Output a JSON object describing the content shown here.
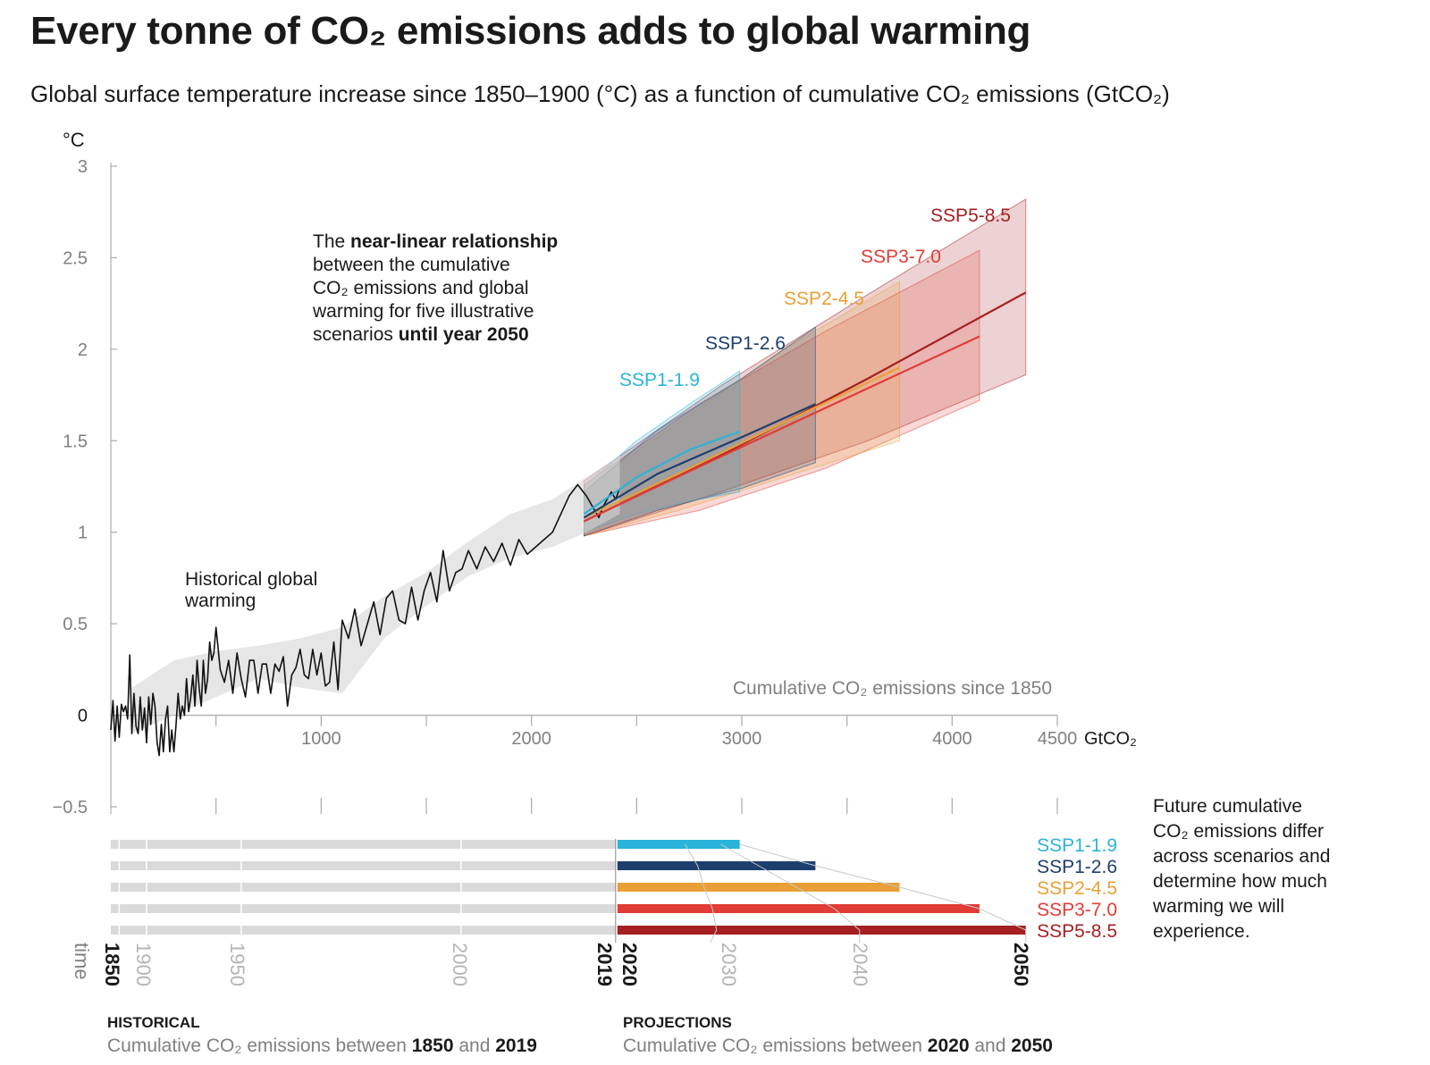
{
  "title": "Every tonne of CO₂ emissions adds to global warming",
  "subtitle": "Global surface temperature increase since 1850–1900 (°C) as a function of cumulative CO₂ emissions (GtCO₂)",
  "chart_data": {
    "type": "line",
    "ylabel": "°C",
    "xlabel": "Cumulative CO₂ emissions since 1850",
    "x_unit": "GtCO₂",
    "xlim": [
      0,
      4500
    ],
    "ylim": [
      -0.5,
      3
    ],
    "x_ticks": [
      "1000",
      "2000",
      "3000",
      "4000",
      "4500"
    ],
    "y_ticks": [
      "3",
      "2.5",
      "2",
      "1.5",
      "1",
      "0.5",
      "0",
      "−0.5"
    ],
    "annotation_linear": {
      "line1_pre": "The ",
      "line1_bold": "near-linear relationship",
      "line2": "between the cumulative",
      "line3": "CO₂ emissions and global",
      "line4": "warming for five illustrative",
      "line5_pre": "scenarios ",
      "line5_bold": "until year 2050"
    },
    "annotation_historical": [
      "Historical global",
      "warming"
    ],
    "historical": {
      "name": "Historical global warming",
      "x": [
        0,
        10,
        20,
        30,
        40,
        50,
        60,
        70,
        80,
        90,
        100,
        110,
        120,
        130,
        140,
        150,
        160,
        170,
        180,
        190,
        200,
        210,
        220,
        230,
        240,
        250,
        260,
        270,
        280,
        290,
        300,
        310,
        320,
        330,
        340,
        350,
        360,
        370,
        380,
        390,
        400,
        410,
        420,
        430,
        440,
        450,
        460,
        470,
        480,
        490,
        500,
        520,
        540,
        560,
        580,
        600,
        620,
        640,
        660,
        680,
        700,
        720,
        740,
        760,
        780,
        800,
        820,
        840,
        860,
        880,
        900,
        920,
        940,
        960,
        980,
        1000,
        1020,
        1040,
        1060,
        1080,
        1100,
        1130,
        1160,
        1190,
        1220,
        1250,
        1280,
        1310,
        1340,
        1370,
        1400,
        1430,
        1460,
        1490,
        1520,
        1550,
        1580,
        1610,
        1640,
        1670,
        1700,
        1740,
        1780,
        1820,
        1860,
        1900,
        1940,
        1980,
        2020,
        2060,
        2100,
        2140,
        2180,
        2220,
        2260,
        2280,
        2300,
        2320,
        2340,
        2360,
        2380,
        2400,
        2420
      ],
      "y": [
        -0.08,
        0.08,
        -0.14,
        0.05,
        -0.12,
        0.06,
        0.02,
        0.05,
        -0.02,
        0.33,
        -0.1,
        0.12,
        -0.06,
        -0.1,
        0.1,
        -0.08,
        0.04,
        -0.15,
        0.1,
        -0.05,
        0.12,
        0.05,
        -0.15,
        -0.22,
        -0.05,
        -0.2,
        -0.02,
        0.05,
        -0.2,
        -0.08,
        -0.2,
        -0.05,
        0.12,
        -0.02,
        0.05,
        0.0,
        0.2,
        0.02,
        0.1,
        0.22,
        0.05,
        0.3,
        0.15,
        0.05,
        0.3,
        0.12,
        0.2,
        0.4,
        0.3,
        0.34,
        0.48,
        0.25,
        0.18,
        0.3,
        0.12,
        0.34,
        0.2,
        0.1,
        0.3,
        0.3,
        0.12,
        0.28,
        0.28,
        0.12,
        0.28,
        0.24,
        0.32,
        0.05,
        0.22,
        0.26,
        0.36,
        0.22,
        0.2,
        0.36,
        0.22,
        0.34,
        0.16,
        0.18,
        0.4,
        0.14,
        0.52,
        0.42,
        0.58,
        0.38,
        0.5,
        0.62,
        0.44,
        0.64,
        0.68,
        0.52,
        0.5,
        0.7,
        0.52,
        0.68,
        0.78,
        0.62,
        0.9,
        0.68,
        0.78,
        0.8,
        0.9,
        0.8,
        0.92,
        0.84,
        0.94,
        0.82,
        0.96,
        0.88,
        0.92,
        0.96,
        1.0,
        1.1,
        1.2,
        1.26,
        1.2,
        1.16,
        1.12,
        1.08,
        1.14,
        1.18,
        1.22,
        1.18,
        1.24
      ],
      "band": {
        "x": [
          100,
          300,
          500,
          700,
          900,
          1100,
          1300,
          1500,
          1700,
          1900,
          2100,
          2260,
          2420
        ],
        "lower": [
          -0.1,
          0.0,
          0.1,
          0.2,
          0.15,
          0.12,
          0.42,
          0.6,
          0.76,
          0.86,
          0.92,
          1.0,
          1.1
        ],
        "upper": [
          0.15,
          0.3,
          0.35,
          0.38,
          0.42,
          0.48,
          0.65,
          0.78,
          0.95,
          1.1,
          1.18,
          1.3,
          1.42
        ]
      }
    },
    "series": [
      {
        "name": "SSP1-1.9",
        "color": "#2ab4d9",
        "x": [
          2250,
          2500,
          2750,
          2990
        ],
        "y": [
          1.1,
          1.3,
          1.45,
          1.55
        ],
        "band_lower": [
          1.0,
          1.1,
          1.17,
          1.22
        ],
        "band_upper": [
          1.25,
          1.5,
          1.7,
          1.88
        ]
      },
      {
        "name": "SSP1-2.6",
        "color": "#1d3f6e",
        "x": [
          2250,
          2600,
          3000,
          3350
        ],
        "y": [
          1.08,
          1.32,
          1.52,
          1.7
        ],
        "band_lower": [
          0.98,
          1.12,
          1.24,
          1.38
        ],
        "band_upper": [
          1.22,
          1.56,
          1.84,
          2.12
        ]
      },
      {
        "name": "SSP2-4.5",
        "color": "#e8a036",
        "x": [
          2250,
          2700,
          3200,
          3750
        ],
        "y": [
          1.08,
          1.32,
          1.6,
          1.9
        ],
        "band_lower": [
          0.98,
          1.12,
          1.3,
          1.5
        ],
        "band_upper": [
          1.24,
          1.6,
          2.0,
          2.37
        ]
      },
      {
        "name": "SSP3-7.0",
        "color": "#e13c35",
        "x": [
          2250,
          2800,
          3400,
          4130
        ],
        "y": [
          1.06,
          1.36,
          1.68,
          2.07
        ],
        "band_lower": [
          0.98,
          1.12,
          1.35,
          1.72
        ],
        "band_upper": [
          1.26,
          1.7,
          2.1,
          2.54
        ]
      },
      {
        "name": "SSP5-8.5",
        "color": "#a61f22",
        "x": [
          2250,
          2900,
          3600,
          4350
        ],
        "y": [
          1.06,
          1.42,
          1.84,
          2.31
        ],
        "band_lower": [
          0.98,
          1.22,
          1.5,
          1.86
        ],
        "band_upper": [
          1.28,
          1.8,
          2.3,
          2.82
        ]
      }
    ],
    "timeline": {
      "years_start": "1850",
      "years_mid": [
        "1900",
        "1950",
        "2000"
      ],
      "year_2019": "2019",
      "year_2020": "2020",
      "year_2030": "2030",
      "year_2040": "2040",
      "year_2050": "2050",
      "axis_label": "time",
      "historical_end_gtco2": 2400,
      "bars": [
        {
          "name": "SSP1-1.9",
          "color": "#2ab4d9",
          "end_gtco2": 2990,
          "y2030": 2730,
          "y2040": 2900
        },
        {
          "name": "SSP1-2.6",
          "color": "#1d3f6e",
          "end_gtco2": 3350,
          "y2030": 2790,
          "y2040": 3080
        },
        {
          "name": "SSP2-4.5",
          "color": "#e8a036",
          "end_gtco2": 3750,
          "y2030": 2820,
          "y2040": 3260
        },
        {
          "name": "SSP3-7.0",
          "color": "#e13c35",
          "end_gtco2": 4130,
          "y2030": 2860,
          "y2040": 3440
        },
        {
          "name": "SSP5-8.5",
          "color": "#a61f22",
          "end_gtco2": 4350,
          "y2030": 2880,
          "y2040": 3560
        }
      ]
    },
    "side_note": [
      "Future cumulative",
      "CO₂ emissions differ",
      "across scenarios and",
      "determine how much",
      "warming we will",
      "experience."
    ],
    "caption_historical": {
      "head": "HISTORICAL",
      "text": "Cumulative CO₂ emissions between ",
      "y1": "1850",
      "and": " and ",
      "y2": "2019"
    },
    "caption_projections": {
      "head": "PROJECTIONS",
      "text": "Cumulative CO₂ emissions between ",
      "y1": "2020",
      "and": " and ",
      "y2": "2050"
    }
  }
}
